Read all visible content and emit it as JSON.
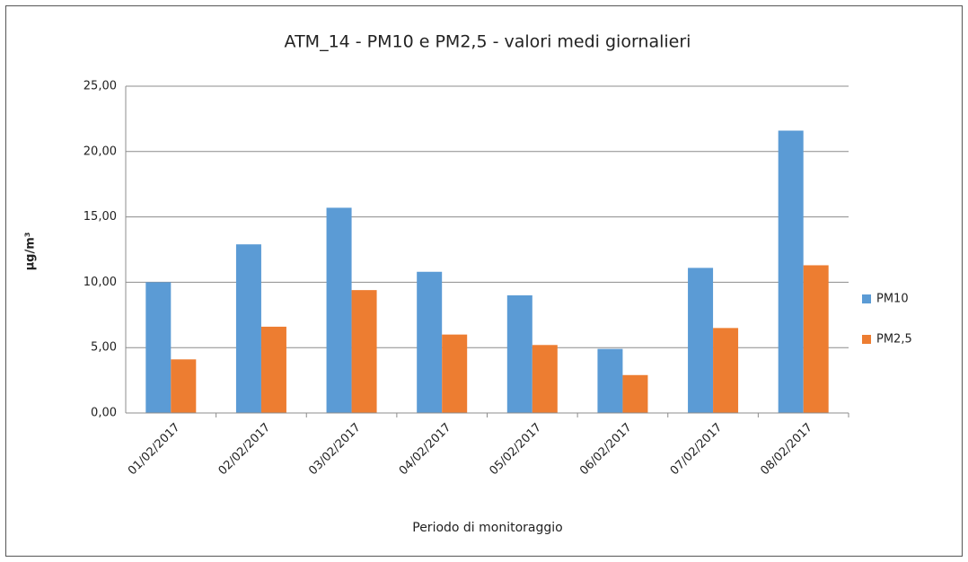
{
  "chart_data": {
    "type": "bar",
    "title": "ATM_14 - PM10 e PM2,5 - valori medi giornalieri",
    "x_label": "Periodo di monitoraggio",
    "y_label": "µg/m³",
    "categories": [
      "01/02/2017",
      "02/02/2017",
      "03/02/2017",
      "04/02/2017",
      "05/02/2017",
      "06/02/2017",
      "07/02/2017",
      "08/02/2017"
    ],
    "series": [
      {
        "name": "PM10",
        "color": "#5b9bd5",
        "values": [
          10.0,
          12.9,
          15.7,
          10.8,
          9.0,
          4.9,
          11.1,
          21.6
        ]
      },
      {
        "name": "PM2,5",
        "color": "#ed7d31",
        "values": [
          4.1,
          6.6,
          9.4,
          6.0,
          5.2,
          2.9,
          6.5,
          11.3
        ]
      }
    ],
    "ylim": [
      0,
      25
    ],
    "yticks": [
      {
        "value": 0,
        "label": "0,00"
      },
      {
        "value": 5,
        "label": "5,00"
      },
      {
        "value": 10,
        "label": "10,00"
      },
      {
        "value": 15,
        "label": "15,00"
      },
      {
        "value": 20,
        "label": "20,00"
      },
      {
        "value": 25,
        "label": "25,00"
      }
    ],
    "grid": true,
    "legend": "right"
  }
}
